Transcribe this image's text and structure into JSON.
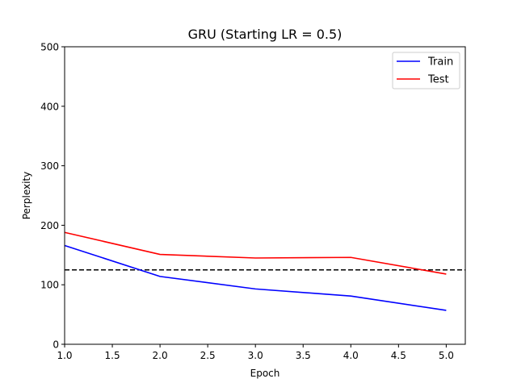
{
  "chart_data": {
    "type": "line",
    "title": "GRU (Starting LR = 0.5)",
    "xlabel": "Epoch",
    "ylabel": "Perplexity",
    "xlim": [
      1.0,
      5.2
    ],
    "ylim": [
      0,
      500
    ],
    "xticks": [
      1.0,
      1.5,
      2.0,
      2.5,
      3.0,
      3.5,
      4.0,
      4.5,
      5.0
    ],
    "xtick_labels": [
      "1.0",
      "1.5",
      "2.0",
      "2.5",
      "3.0",
      "3.5",
      "4.0",
      "4.5",
      "5.0"
    ],
    "yticks": [
      0,
      100,
      200,
      300,
      400,
      500
    ],
    "ytick_labels": [
      "0",
      "100",
      "200",
      "300",
      "400",
      "500"
    ],
    "grid": false,
    "legend_position": "top-right",
    "x": [
      1,
      2,
      3,
      4,
      5
    ],
    "series": [
      {
        "name": "Train",
        "color": "#0000ff",
        "values": [
          166,
          114,
          93,
          81,
          57
        ]
      },
      {
        "name": "Test",
        "color": "#ff0000",
        "values": [
          188,
          151,
          145,
          146,
          118
        ]
      }
    ],
    "reference_line": {
      "y": 125,
      "color": "#000000",
      "style": "dashed"
    }
  }
}
